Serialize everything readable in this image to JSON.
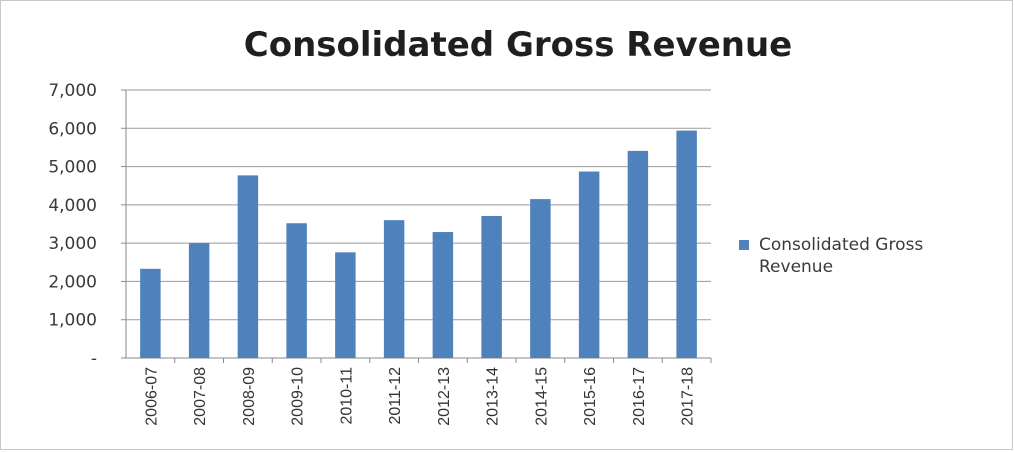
{
  "chart_data": {
    "type": "bar",
    "title": "Consolidated Gross Revenue",
    "xlabel": "",
    "ylabel": "",
    "ylim": [
      0,
      7000
    ],
    "yticks": [
      0,
      1000,
      2000,
      3000,
      4000,
      5000,
      6000,
      7000
    ],
    "ytick_labels": [
      "-",
      "1,000",
      "2,000",
      "3,000",
      "4,000",
      "5,000",
      "6,000",
      "7,000"
    ],
    "grid": true,
    "legend_position": "right",
    "categories": [
      "2006-07",
      "2007-08",
      "2008-09",
      "2009-10",
      "2010-11",
      "2011-12",
      "2012-13",
      "2013-14",
      "2014-15",
      "2015-16",
      "2016-17",
      "2017-18"
    ],
    "series": [
      {
        "name": "Consolidated Gross Revenue",
        "color": "#4f81bd",
        "values": [
          2330,
          3000,
          4770,
          3520,
          2760,
          3600,
          3290,
          3710,
          4150,
          4870,
          5410,
          5940
        ]
      }
    ]
  }
}
